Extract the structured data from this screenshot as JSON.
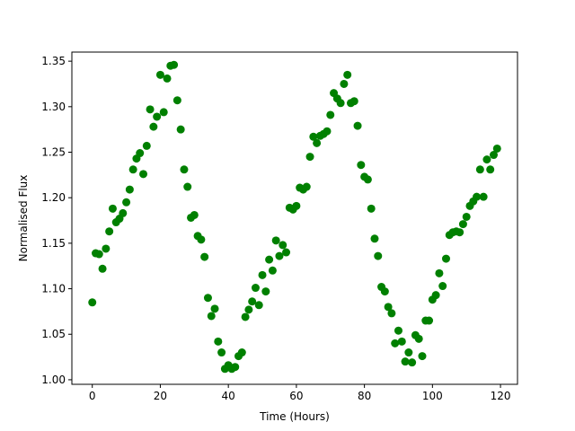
{
  "chart_data": {
    "type": "scatter",
    "title": "",
    "xlabel": "Time (Hours)",
    "ylabel": "Normalised Flux",
    "xlim": [
      -6,
      125
    ],
    "ylim": [
      0.995,
      1.36
    ],
    "xticks": [
      0,
      20,
      40,
      60,
      80,
      100,
      120
    ],
    "yticks": [
      1.0,
      1.05,
      1.1,
      1.15,
      1.2,
      1.25,
      1.3,
      1.35
    ],
    "grid": false,
    "legend": "none",
    "marker_color": "#008000",
    "series": [
      {
        "x": [
          0,
          1,
          2,
          3,
          4,
          5,
          6,
          7,
          8,
          9,
          10,
          11,
          12,
          13,
          14,
          15,
          16,
          17,
          18,
          19,
          20,
          21,
          22,
          23,
          24,
          25,
          26,
          27,
          28,
          29,
          30,
          31,
          32,
          33,
          34,
          35,
          36,
          37,
          38,
          39,
          40,
          41,
          42,
          43,
          44,
          45,
          46,
          47,
          48,
          49,
          50,
          51,
          52,
          53,
          54,
          55,
          56,
          57,
          58,
          59,
          60,
          61,
          62,
          63,
          64,
          65,
          66,
          67,
          68,
          69,
          70,
          71,
          72,
          73,
          74,
          75,
          76,
          77,
          78,
          79,
          80,
          81,
          82,
          83,
          84,
          85,
          86,
          87,
          88,
          89,
          90,
          91,
          92,
          93,
          94,
          95,
          96,
          97,
          98,
          99,
          100,
          101,
          102,
          103,
          104,
          105,
          106,
          107,
          108,
          109,
          110,
          111,
          112,
          113,
          114,
          115,
          116,
          117,
          118,
          119
        ],
        "y": [
          1.085,
          1.139,
          1.138,
          1.122,
          1.144,
          1.163,
          1.188,
          1.173,
          1.177,
          1.183,
          1.195,
          1.209,
          1.231,
          1.243,
          1.249,
          1.226,
          1.257,
          1.297,
          1.278,
          1.289,
          1.335,
          1.294,
          1.331,
          1.345,
          1.346,
          1.307,
          1.275,
          1.231,
          1.212,
          1.178,
          1.181,
          1.158,
          1.154,
          1.135,
          1.09,
          1.07,
          1.078,
          1.042,
          1.03,
          1.012,
          1.016,
          1.012,
          1.014,
          1.026,
          1.03,
          1.069,
          1.077,
          1.086,
          1.101,
          1.082,
          1.115,
          1.097,
          1.132,
          1.12,
          1.153,
          1.136,
          1.148,
          1.14,
          1.189,
          1.187,
          1.191,
          1.211,
          1.209,
          1.212,
          1.245,
          1.267,
          1.26,
          1.268,
          1.27,
          1.273,
          1.291,
          1.315,
          1.309,
          1.304,
          1.325,
          1.335,
          1.304,
          1.306,
          1.279,
          1.236,
          1.223,
          1.22,
          1.188,
          1.155,
          1.136,
          1.102,
          1.097,
          1.08,
          1.073,
          1.04,
          1.054,
          1.042,
          1.02,
          1.03,
          1.019,
          1.049,
          1.045,
          1.026,
          1.065,
          1.065,
          1.088,
          1.093,
          1.117,
          1.103,
          1.133,
          1.159,
          1.162,
          1.163,
          1.162,
          1.171,
          1.179,
          1.191,
          1.196,
          1.201,
          1.231,
          1.201,
          1.242,
          1.231,
          1.247,
          1.254
        ]
      }
    ]
  }
}
